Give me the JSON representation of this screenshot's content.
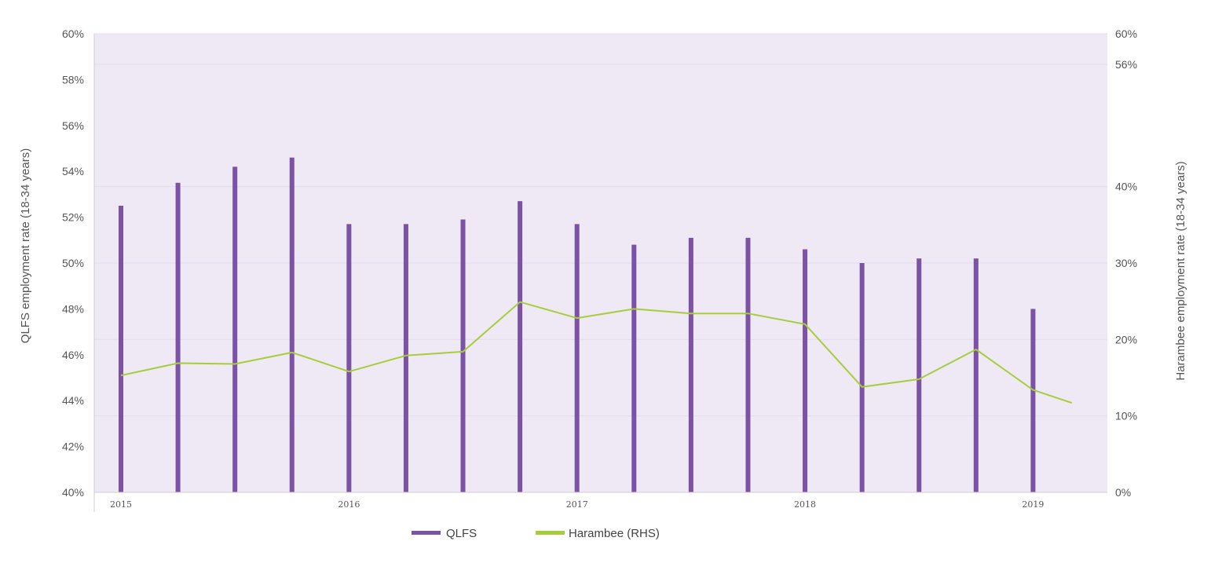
{
  "chart_data": {
    "type": "bar",
    "title": "",
    "y_left": {
      "label": "QLFS employment rate (18-34 years)",
      "range": [
        40,
        60
      ],
      "ticks": [
        "40%",
        "42%",
        "44%",
        "46%",
        "48%",
        "50%",
        "52%",
        "54%",
        "56%",
        "58%",
        "60%"
      ]
    },
    "y_right": {
      "label": "Harambee employment rate (18-34 years)",
      "range": [
        0,
        60
      ],
      "ticks": [
        "0%",
        "10%",
        "20%",
        "30%",
        "40%",
        "56%",
        "60%"
      ]
    },
    "x": {
      "tick_labels": [
        "2015",
        "2016",
        "2017",
        "2018",
        "2019"
      ],
      "range": [
        2015,
        2019.25
      ]
    },
    "grid": true,
    "legend_position": "bottom",
    "colors": {
      "qlfs": "#7b52a4",
      "harambee": "#a8cd3a",
      "plot_bg": "#eee9f5"
    },
    "series": [
      {
        "name": "QLFS",
        "type": "bar",
        "axis": "left",
        "x": [
          2015.0,
          2015.25,
          2015.5,
          2015.75,
          2016.0,
          2016.25,
          2016.5,
          2016.75,
          2017.0,
          2017.25,
          2017.5,
          2017.75,
          2018.0,
          2018.25,
          2018.5,
          2018.75,
          2019.0
        ],
        "values": [
          52.5,
          53.5,
          54.2,
          54.6,
          51.7,
          51.7,
          51.9,
          52.7,
          51.7,
          50.8,
          51.1,
          51.1,
          50.6,
          50.0,
          50.2,
          50.2,
          48.0
        ]
      },
      {
        "name": "Harambee (RHS)",
        "type": "line",
        "axis": "right",
        "x": [
          2015.0,
          2015.25,
          2015.5,
          2015.75,
          2016.0,
          2016.25,
          2016.5,
          2016.75,
          2017.0,
          2017.25,
          2017.5,
          2017.75,
          2018.0,
          2018.25,
          2018.5,
          2018.75,
          2019.0,
          2019.17
        ],
        "values": [
          15.3,
          16.9,
          16.8,
          18.3,
          15.8,
          17.9,
          18.4,
          24.9,
          22.8,
          24.0,
          23.4,
          23.4,
          22.0,
          13.8,
          14.8,
          18.7,
          13.4,
          11.7
        ]
      }
    ]
  }
}
